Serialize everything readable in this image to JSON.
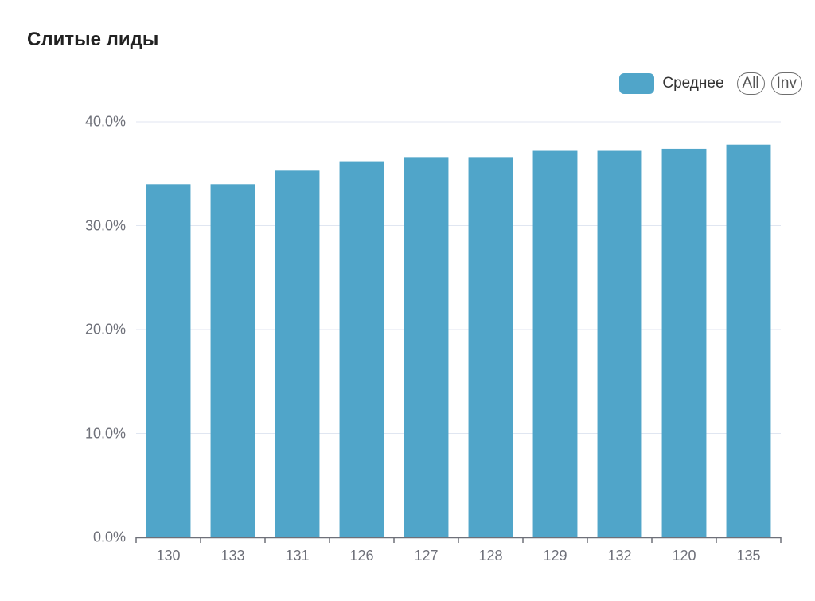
{
  "title": "Слитые лиды",
  "legend": {
    "series_label": "Среднее",
    "swatch_color": "#50a5c9",
    "buttons": [
      "All",
      "Inv"
    ]
  },
  "chart_data": {
    "type": "bar",
    "title": "Слитые лиды",
    "xlabel": "",
    "ylabel": "",
    "categories": [
      "130",
      "133",
      "131",
      "126",
      "127",
      "128",
      "129",
      "132",
      "120",
      "135"
    ],
    "series": [
      {
        "name": "Среднее",
        "color": "#50a5c9",
        "values": [
          34.0,
          34.0,
          35.3,
          36.2,
          36.6,
          36.6,
          37.2,
          37.2,
          37.4,
          37.8
        ]
      }
    ],
    "ylim": [
      0,
      40
    ],
    "yticks": [
      "0.0%",
      "10.0%",
      "20.0%",
      "30.0%",
      "40.0%"
    ],
    "grid": true,
    "legend_position": "top-right"
  }
}
